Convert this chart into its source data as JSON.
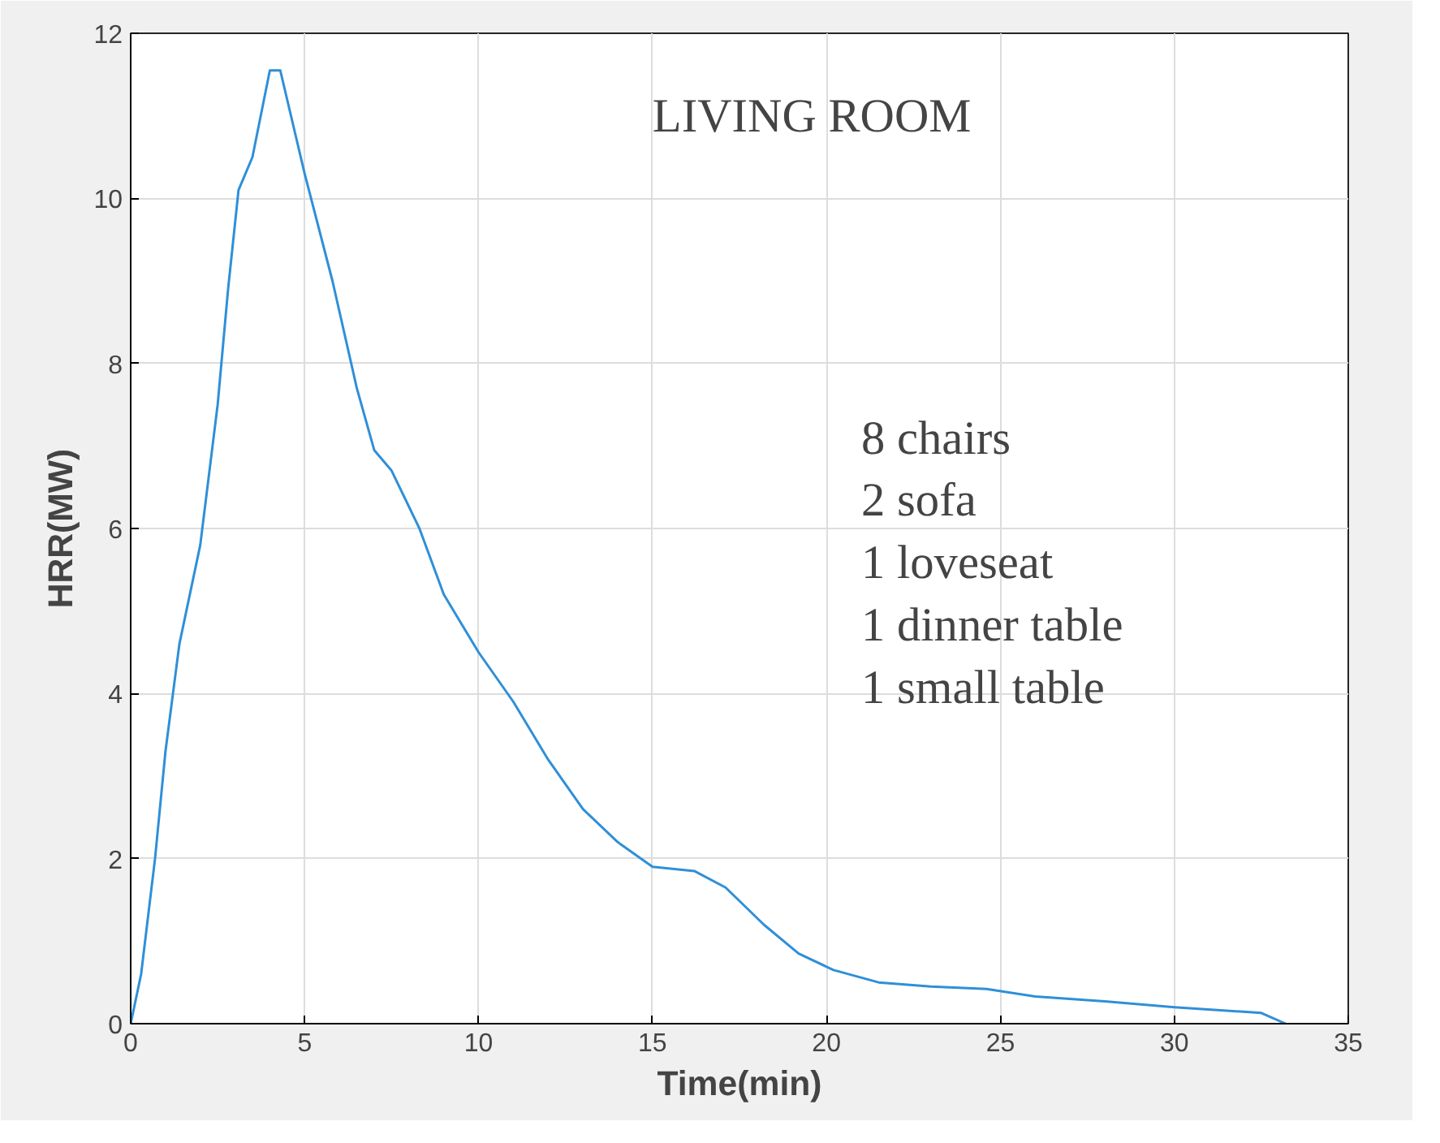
{
  "chart_data": {
    "type": "line",
    "xlabel": "Time(min)",
    "ylabel": "HRR(MW)",
    "annotations": [
      "LIVING ROOM",
      "8 chairs\n2 sofa\n1 loveseat\n1 dinner table\n1 small table"
    ],
    "xlim": [
      0,
      35
    ],
    "ylim": [
      0,
      12
    ],
    "xticks": [
      0,
      5,
      10,
      15,
      20,
      25,
      30,
      35
    ],
    "yticks": [
      0,
      2,
      4,
      6,
      8,
      10,
      12
    ],
    "grid": true,
    "series": [
      {
        "color": "#2f8fd8",
        "x": [
          0,
          0.3,
          0.7,
          1.0,
          1.4,
          2.0,
          2.5,
          2.8,
          3.1,
          3.5,
          4.0,
          4.3,
          5.0,
          5.8,
          6.5,
          7.0,
          7.5,
          8.3,
          9.0,
          10.0,
          11.0,
          12.0,
          13.0,
          14.0,
          15.0,
          16.2,
          17.1,
          18.2,
          19.2,
          20.2,
          21.5,
          23.0,
          24.6,
          26.0,
          28.0,
          30.0,
          32.5,
          33.2
        ],
        "values": [
          0,
          0.6,
          2.0,
          3.3,
          4.6,
          5.8,
          7.5,
          8.9,
          10.1,
          10.5,
          11.55,
          11.55,
          10.3,
          9.0,
          7.7,
          6.95,
          6.7,
          6.0,
          5.2,
          4.5,
          3.9,
          3.2,
          2.6,
          2.2,
          1.9,
          1.85,
          1.65,
          1.2,
          0.85,
          0.65,
          0.5,
          0.45,
          0.42,
          0.33,
          0.27,
          0.2,
          0.13,
          0.0
        ]
      }
    ]
  }
}
